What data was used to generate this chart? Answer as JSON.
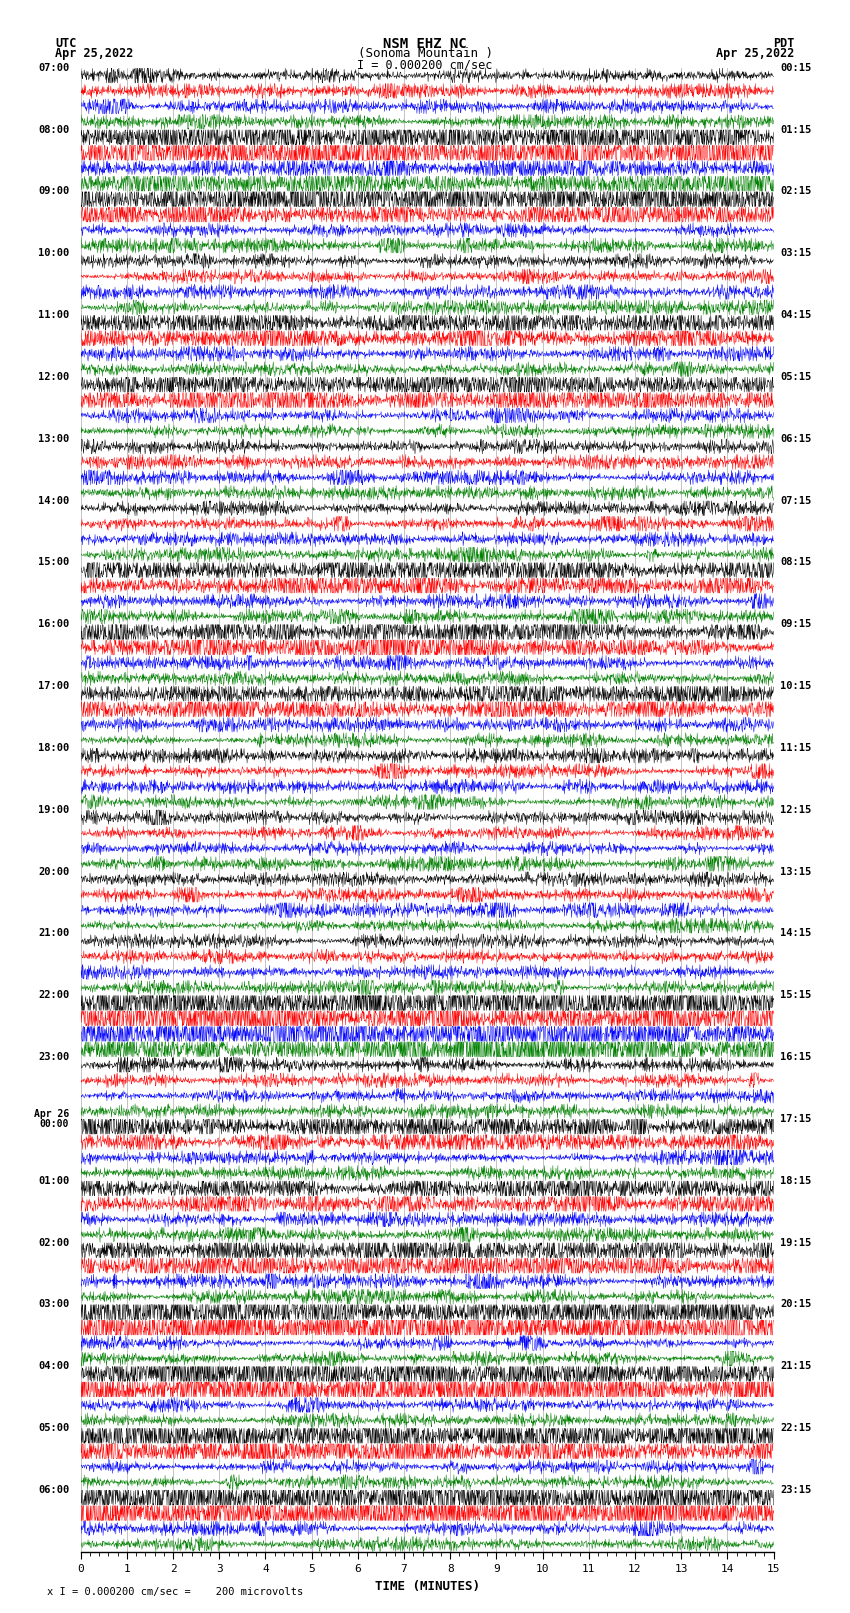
{
  "title_line1": "NSM EHZ NC",
  "title_line2": "(Sonoma Mountain )",
  "title_line3": "I = 0.000200 cm/sec",
  "left_header1": "UTC",
  "left_header2": "Apr 25,2022",
  "right_header1": "PDT",
  "right_header2": "Apr 25,2022",
  "xlabel": "TIME (MINUTES)",
  "footer": "x I = 0.000200 cm/sec =    200 microvolts",
  "utc_labels": [
    "07:00",
    "08:00",
    "09:00",
    "10:00",
    "11:00",
    "12:00",
    "13:00",
    "14:00",
    "15:00",
    "16:00",
    "17:00",
    "18:00",
    "19:00",
    "20:00",
    "21:00",
    "22:00",
    "23:00",
    "Apr 26\n00:00",
    "01:00",
    "02:00",
    "03:00",
    "04:00",
    "05:00",
    "06:00"
  ],
  "pdt_labels": [
    "00:15",
    "01:15",
    "02:15",
    "03:15",
    "04:15",
    "05:15",
    "06:15",
    "07:15",
    "08:15",
    "09:15",
    "10:15",
    "11:15",
    "12:15",
    "13:15",
    "14:15",
    "15:15",
    "16:15",
    "17:15",
    "18:15",
    "19:15",
    "20:15",
    "21:15",
    "22:15",
    "23:15"
  ],
  "trace_colors": [
    "black",
    "red",
    "blue",
    "green"
  ],
  "num_hour_blocks": 24,
  "num_rows": 96,
  "x_min": 0,
  "x_max": 15,
  "x_ticks": [
    0,
    1,
    2,
    3,
    4,
    5,
    6,
    7,
    8,
    9,
    10,
    11,
    12,
    13,
    14,
    15
  ],
  "bg_color": "white",
  "grid_color": "#888888",
  "seed": 42,
  "row_amplitude": 0.38,
  "high_amp_rows": [
    4,
    5,
    6,
    7,
    8,
    9,
    16,
    17,
    20,
    21,
    32,
    33,
    36,
    37,
    40,
    41,
    60,
    61,
    62,
    63,
    68,
    69,
    72,
    73,
    76,
    77,
    80,
    81,
    84,
    85,
    88,
    89,
    92,
    93
  ],
  "very_high_amp_rows": [
    4,
    5,
    8,
    60,
    61,
    62,
    63,
    80,
    81,
    84,
    85,
    88,
    89,
    92,
    93
  ]
}
